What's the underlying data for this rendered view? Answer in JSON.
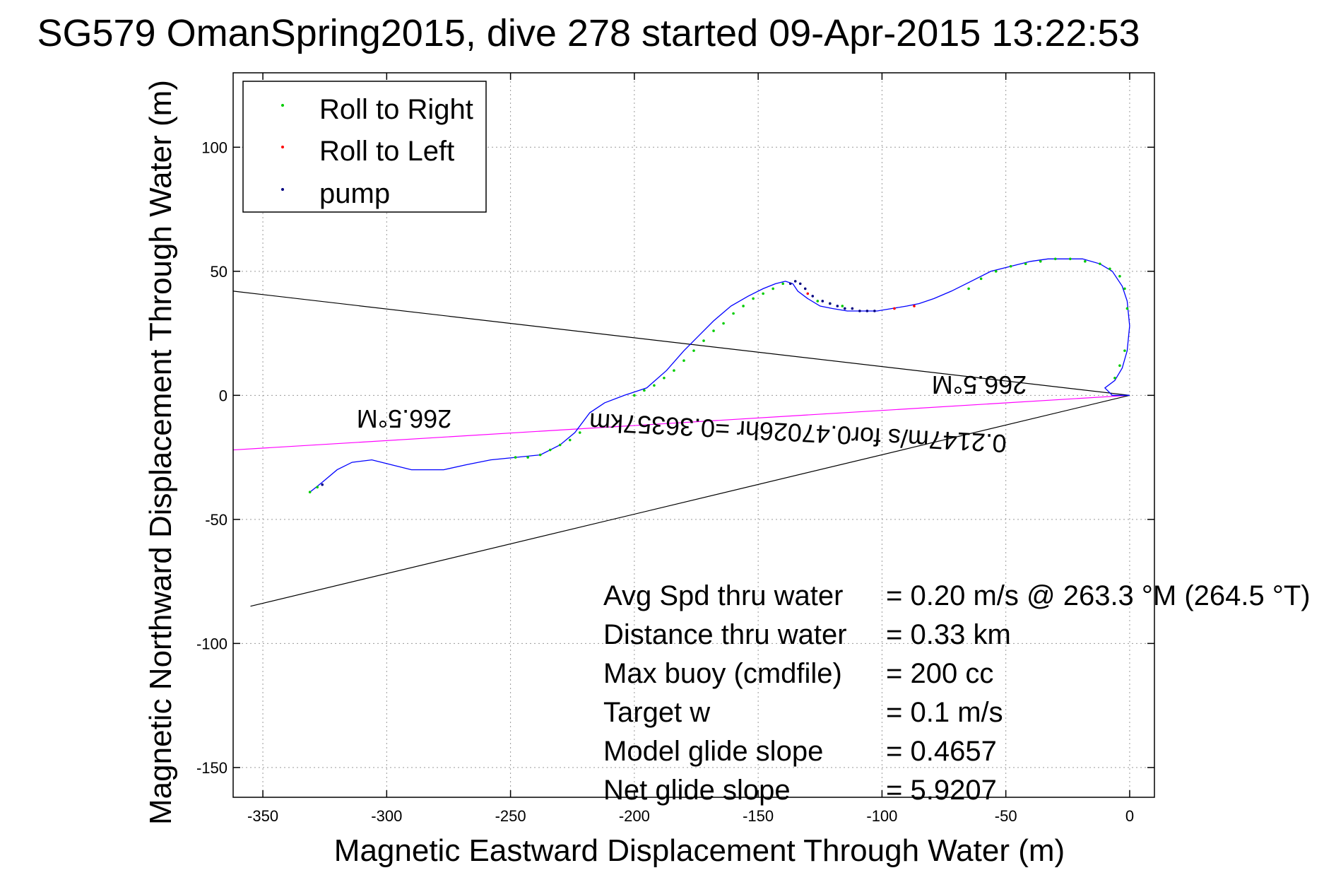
{
  "chart_data": {
    "type": "scatter",
    "title": "SG579 OmanSpring2015, dive 278 started 09-Apr-2015 13:22:53",
    "xlabel": "Magnetic Eastward Displacement Through Water (m)",
    "ylabel": "Magnetic Northward Displacement Through Water (m)",
    "xlim": [
      -362,
      10
    ],
    "ylim": [
      -162,
      130
    ],
    "xticks": [
      -350,
      -300,
      -250,
      -200,
      -150,
      -100,
      -50,
      0
    ],
    "yticks": [
      -150,
      -100,
      -50,
      0,
      50,
      100
    ],
    "grid": true,
    "legend": {
      "placement": "top-left",
      "entries": [
        {
          "label": "Roll to Right",
          "color": "#00cc00"
        },
        {
          "label": "Roll to Left",
          "color": "#ff0000"
        },
        {
          "label": "pump",
          "color": "#000080"
        }
      ]
    },
    "series": [
      {
        "name": "track",
        "color": "#0000ff",
        "x": [
          -331,
          -326,
          -320,
          -314,
          -306,
          -298,
          -290,
          -283,
          -277,
          -268,
          -258,
          -248,
          -238,
          -230,
          -224,
          -218,
          -212,
          -204,
          -195,
          -187,
          -180,
          -174,
          -168,
          -161,
          -154,
          -148,
          -143,
          -139,
          -136,
          -134,
          -130,
          -125,
          -120,
          -114,
          -108,
          -102,
          -96,
          -90,
          -85,
          -79,
          -72,
          -64,
          -56,
          -48,
          -40,
          -33,
          -26,
          -19,
          -12,
          -7,
          -3,
          -1,
          0,
          -1,
          -3,
          -6,
          -10,
          -7,
          -4,
          -2,
          0
        ],
        "y": [
          -39,
          -35,
          -30,
          -27,
          -26,
          -28,
          -30,
          -30,
          -30,
          -28,
          -26,
          -25,
          -24,
          -20,
          -15,
          -7,
          -3,
          0,
          3,
          10,
          18,
          24,
          30,
          36,
          40,
          43,
          45,
          46,
          45,
          42,
          39,
          36,
          35,
          34,
          34,
          34,
          35,
          36,
          37,
          39,
          42,
          46,
          50,
          52,
          54,
          55,
          55,
          55,
          53,
          50,
          44,
          38,
          28,
          18,
          11,
          6,
          3,
          0,
          0,
          0,
          0
        ]
      },
      {
        "name": "Roll to Right",
        "color": "#00cc00",
        "x": [
          -331,
          -328,
          -248,
          -243,
          -238,
          -234,
          -230,
          -226,
          -222,
          -200,
          -196,
          -192,
          -188,
          -184,
          -180,
          -176,
          -172,
          -168,
          -164,
          -160,
          -156,
          -152,
          -148,
          -144,
          -140,
          -126,
          -121,
          -116,
          -65,
          -60,
          -54,
          -48,
          -42,
          -36,
          -30,
          -24,
          -18,
          -12,
          -8,
          -4,
          -2,
          -1,
          -2,
          -4,
          -6
        ],
        "y": [
          -39,
          -37,
          -25,
          -25,
          -24,
          -22,
          -20,
          -18,
          -15,
          0,
          2,
          4,
          7,
          10,
          14,
          18,
          22,
          26,
          29,
          33,
          36,
          39,
          41,
          43,
          45,
          38,
          37,
          36,
          43,
          47,
          50,
          52,
          53,
          54,
          55,
          55,
          54,
          53,
          51,
          48,
          43,
          35,
          18,
          12,
          7
        ]
      },
      {
        "name": "Roll to Left",
        "color": "#ff0000",
        "x": [
          -130,
          -95,
          -87
        ],
        "y": [
          41,
          35,
          36
        ]
      },
      {
        "name": "pump",
        "color": "#000080",
        "x": [
          -326,
          -137,
          -135,
          -133,
          -131,
          -128,
          -124,
          -121,
          -118,
          -115,
          -112,
          -109,
          -106,
          -103
        ],
        "y": [
          -36,
          45,
          46,
          45,
          43,
          40,
          38,
          37,
          36,
          35,
          35,
          34,
          34,
          34
        ]
      }
    ],
    "reference_lines": [
      {
        "name": "current-heading-line",
        "color": "#ff00ff",
        "x": [
          0,
          -362
        ],
        "y": [
          0,
          -22
        ]
      },
      {
        "name": "bound-line-upper",
        "color": "#000000",
        "x": [
          0,
          -362
        ],
        "y": [
          0,
          42
        ]
      },
      {
        "name": "bound-line-lower",
        "color": "#000000",
        "x": [
          0,
          -355
        ],
        "y": [
          0,
          -85
        ]
      }
    ],
    "annotations": [
      {
        "text": "266.5°M",
        "x": -50,
        "y": 2,
        "rotate": 180
      },
      {
        "text": "0.2147m/s for0.47026hr =0.36357km",
        "x": -120,
        "y": -6,
        "rotate": 183
      },
      {
        "text": "266.5°M",
        "x": -305,
        "y": -7,
        "rotate": 180
      }
    ],
    "stats": [
      {
        "label": "Avg Spd thru water",
        "value": "=  0.20 m/s @ 263.3 °M (264.5 °T)"
      },
      {
        "label": "Distance thru water",
        "value": "=  0.33 km"
      },
      {
        "label": "Max buoy (cmdfile)",
        "value": "= 200 cc"
      },
      {
        "label": "Target w",
        "value": "= 0.1 m/s"
      },
      {
        "label": "Model glide slope",
        "value": "= 0.4657"
      },
      {
        "label": "Net glide slope",
        "value": "= 5.9207"
      }
    ]
  }
}
